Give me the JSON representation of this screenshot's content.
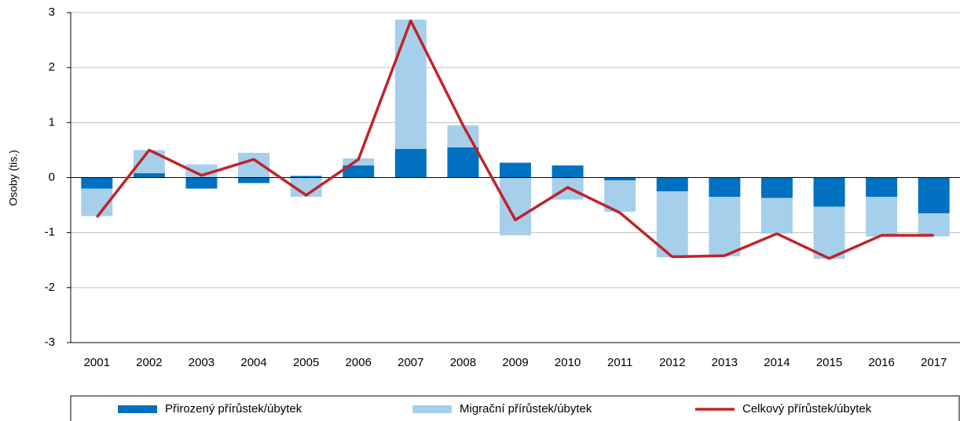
{
  "chart_data": {
    "type": "bar",
    "stacked": true,
    "y_label": "Osoby (tis.)",
    "categories": [
      "2001",
      "2002",
      "2003",
      "2004",
      "2005",
      "2006",
      "2007",
      "2008",
      "2009",
      "2010",
      "2011",
      "2012",
      "2013",
      "2014",
      "2015",
      "2016",
      "2017"
    ],
    "series": [
      {
        "name": "Přirozený přírůstek/úbytek",
        "color": "#0070c0",
        "type": "bar",
        "values": [
          -0.2,
          0.08,
          -0.2,
          -0.1,
          0.03,
          0.22,
          0.52,
          0.55,
          0.27,
          0.22,
          -0.05,
          -0.25,
          -0.35,
          -0.37,
          -0.53,
          -0.35,
          -0.65
        ]
      },
      {
        "name": "Migrační přírůstek/úbytek",
        "color": "#a6cfeb",
        "type": "bar",
        "values": [
          -0.5,
          0.42,
          0.24,
          0.45,
          -0.35,
          0.13,
          2.35,
          0.4,
          -1.05,
          -0.4,
          -0.57,
          -1.2,
          -1.08,
          -0.65,
          -0.95,
          -0.72,
          -0.42
        ]
      },
      {
        "name": "Celkový přírůstek/úbytek",
        "color": "#c0232b",
        "type": "line",
        "values": [
          -0.72,
          0.5,
          0.04,
          0.33,
          -0.32,
          0.33,
          2.85,
          0.95,
          -0.77,
          -0.18,
          -0.64,
          -1.44,
          -1.42,
          -1.02,
          -1.47,
          -1.05,
          -1.05
        ]
      }
    ],
    "ylim": [
      -3,
      3
    ],
    "yticks": [
      -3,
      -2,
      -1,
      0,
      1,
      2,
      3
    ],
    "grid": true,
    "legend": "bottom"
  }
}
